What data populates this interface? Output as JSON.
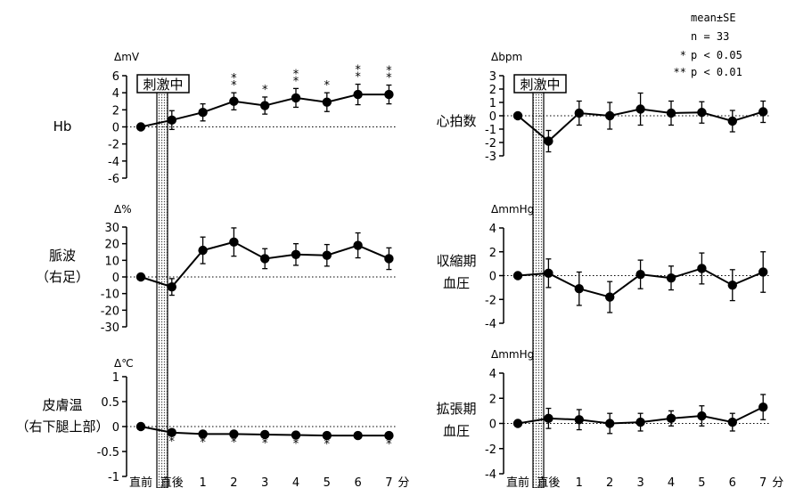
{
  "legend": {
    "mean": "mean±SE",
    "n": "n = 33",
    "p05_mark": "*",
    "p05": "p < 0.05",
    "p01_mark": "**",
    "p01": "p < 0.01"
  },
  "stimulus_label": "刺激中",
  "x_categories": [
    "直前",
    "直後",
    "1",
    "2",
    "3",
    "4",
    "5",
    "6",
    "7"
  ],
  "x_unit": "分",
  "chart_data": [
    {
      "type": "line",
      "id": "hb",
      "row_label": [
        "Hb"
      ],
      "y_unit": "ΔmV",
      "ylim": [
        -6,
        6
      ],
      "yticks": [
        -6,
        -4,
        -2,
        0,
        2,
        4,
        6
      ],
      "values": [
        0,
        0.8,
        1.7,
        3.0,
        2.5,
        3.4,
        2.9,
        3.8,
        3.8
      ],
      "err": [
        0,
        1.1,
        1.0,
        1.0,
        1.0,
        1.1,
        1.1,
        1.2,
        1.1
      ],
      "sig": [
        "",
        "",
        "",
        "**",
        "*",
        "**",
        "*",
        "**",
        "**"
      ],
      "sig_pos": "above"
    },
    {
      "type": "line",
      "id": "pulse",
      "row_label": [
        "脈波",
        "（右足）"
      ],
      "y_unit": "Δ%",
      "ylim": [
        -30,
        30
      ],
      "yticks": [
        -30,
        -20,
        -10,
        0,
        10,
        20,
        30
      ],
      "values": [
        0,
        -6,
        16,
        21,
        11,
        13.5,
        13,
        19,
        11
      ],
      "err": [
        0,
        5,
        8,
        8.5,
        6,
        6.5,
        6.5,
        7.5,
        6.5
      ],
      "sig": [
        "",
        "",
        "",
        "",
        "",
        "",
        "",
        "",
        ""
      ],
      "sig_pos": "above"
    },
    {
      "type": "line",
      "id": "skin",
      "row_label": [
        "皮膚温",
        "（右下腿上部）"
      ],
      "y_unit": "Δ℃",
      "ylim": [
        -1,
        1
      ],
      "yticks": [
        -1,
        -0.5,
        0,
        0.5,
        1
      ],
      "values": [
        0,
        -0.12,
        -0.15,
        -0.15,
        -0.16,
        -0.17,
        -0.18,
        -0.18,
        -0.18
      ],
      "err": [
        0,
        0.06,
        0.05,
        0.05,
        0.05,
        0.05,
        0.05,
        0.05,
        0.05
      ],
      "sig": [
        "",
        "*",
        "*",
        "*",
        "*",
        "*",
        "*",
        "",
        "*"
      ],
      "sig_pos": "below"
    },
    {
      "type": "line",
      "id": "hr",
      "row_label": [
        "心拍数"
      ],
      "y_unit": "Δbpm",
      "ylim": [
        -3,
        3
      ],
      "yticks": [
        -3,
        -2,
        -1,
        0,
        1,
        2,
        3
      ],
      "values": [
        0,
        -1.9,
        0.2,
        0,
        0.5,
        0.2,
        0.25,
        -0.4,
        0.3
      ],
      "err": [
        0,
        0.8,
        0.9,
        1.0,
        1.2,
        0.9,
        0.8,
        0.8,
        0.8
      ],
      "sig": [
        "",
        "",
        "",
        "",
        "",
        "",
        "",
        "",
        ""
      ],
      "sig_pos": "above"
    },
    {
      "type": "line",
      "id": "sbp",
      "row_label": [
        "収縮期",
        "血圧"
      ],
      "y_unit": "ΔmmHg",
      "ylim": [
        -4,
        4
      ],
      "yticks": [
        -4,
        -2,
        0,
        2,
        4
      ],
      "values": [
        0,
        0.2,
        -1.1,
        -1.8,
        0.1,
        -0.2,
        0.6,
        -0.8,
        0.3
      ],
      "err": [
        0,
        1.2,
        1.4,
        1.3,
        1.2,
        1.0,
        1.3,
        1.3,
        1.7
      ],
      "sig": [
        "",
        "",
        "",
        "",
        "",
        "",
        "",
        "",
        ""
      ],
      "sig_pos": "above"
    },
    {
      "type": "line",
      "id": "dbp",
      "row_label": [
        "拡張期",
        "血圧"
      ],
      "y_unit": "ΔmmHg",
      "ylim": [
        -4,
        4
      ],
      "yticks": [
        -4,
        -2,
        0,
        2,
        4
      ],
      "values": [
        0,
        0.4,
        0.3,
        0,
        0.1,
        0.4,
        0.6,
        0.1,
        1.3
      ],
      "err": [
        0,
        0.8,
        0.8,
        0.8,
        0.7,
        0.6,
        0.8,
        0.7,
        1.0
      ],
      "sig": [
        "",
        "",
        "",
        "",
        "",
        "",
        "",
        "",
        ""
      ],
      "sig_pos": "above"
    }
  ]
}
